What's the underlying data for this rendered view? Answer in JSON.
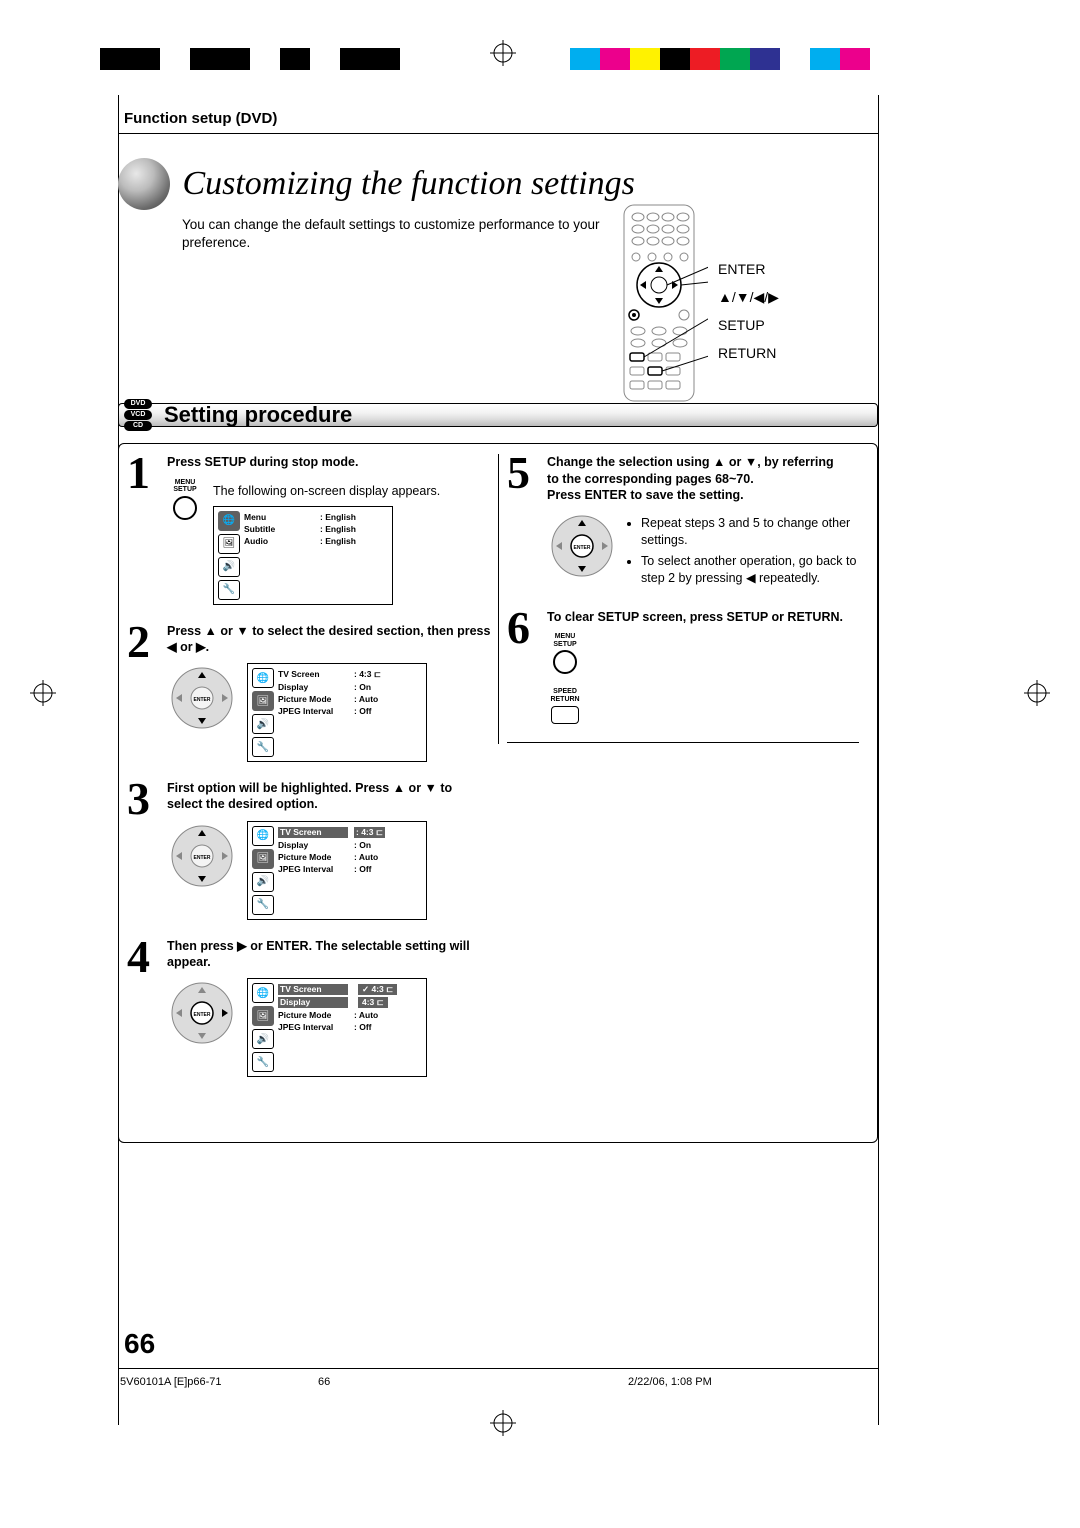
{
  "colorbars": {
    "black_swatches": [
      "#000000",
      "#000000",
      "#ffffff",
      "#000000",
      "#000000",
      "#ffffff",
      "#000000",
      "#ffffff",
      "#000000",
      "#000000"
    ],
    "cmyk_swatches": [
      "#00aeef",
      "#ec008c",
      "#fff200",
      "#000000",
      "#ed1c24",
      "#00a651",
      "#2e3192",
      "#ffffff",
      "#00aeef",
      "#ec008c"
    ]
  },
  "header": {
    "section": "Function setup (DVD)",
    "title": "Customizing the function settings",
    "intro": "You can change the default settings to customize performance to your preference."
  },
  "remote_labels": {
    "enter": "ENTER",
    "arrows": "▲/▼/◀/▶",
    "setup": "SETUP",
    "return": "RETURN"
  },
  "procedure": {
    "disc_badges": [
      "DVD",
      "VCD",
      "CD"
    ],
    "title": "Setting procedure"
  },
  "steps": {
    "s1": {
      "num": "1",
      "head": "Press SETUP during stop mode.",
      "body": "The following on-screen display appears.",
      "key_label1": "MENU",
      "key_label2": "SETUP"
    },
    "s2": {
      "num": "2",
      "head": "Press ▲ or ▼ to select the desired section, then press ◀ or ▶."
    },
    "s3": {
      "num": "3",
      "head": "First option will be highlighted. Press ▲ or ▼ to select the desired option."
    },
    "s4": {
      "num": "4",
      "head": "Then press ▶ or ENTER. The selectable setting will appear."
    },
    "s5": {
      "num": "5",
      "head_l1": "Change the selection using ▲ or ▼, by referring",
      "head_l2": "to the corresponding pages 68~70.",
      "head_l3": "Press ENTER to save the setting.",
      "bullet1": "Repeat steps 3 and 5 to change other settings.",
      "bullet2": "To select another operation, go back to step 2 by pressing ◀ repeatedly."
    },
    "s6": {
      "num": "6",
      "head": "To clear SETUP screen, press SETUP or RETURN.",
      "key1_l1": "MENU",
      "key1_l2": "SETUP",
      "key2_l1": "SPEED",
      "key2_l2": "RETURN"
    }
  },
  "osd1": {
    "rows": [
      {
        "lbl": "Menu",
        "val": "English"
      },
      {
        "lbl": "Subtitle",
        "val": "English"
      },
      {
        "lbl": "Audio",
        "val": "English"
      }
    ]
  },
  "osd2": {
    "rows": [
      {
        "lbl": "TV Screen",
        "val": "4:3 ⊏"
      },
      {
        "lbl": "Display",
        "val": "On"
      },
      {
        "lbl": "Picture Mode",
        "val": "Auto"
      },
      {
        "lbl": "JPEG Interval",
        "val": "Off"
      }
    ]
  },
  "osd3": {
    "rows": [
      {
        "lbl": "TV Screen",
        "val": "4:3 ⊏",
        "hl": true
      },
      {
        "lbl": "Display",
        "val": "On"
      },
      {
        "lbl": "Picture Mode",
        "val": "Auto"
      },
      {
        "lbl": "JPEG Interval",
        "val": "Off"
      }
    ]
  },
  "osd4": {
    "rows": [
      {
        "lbl": "TV Screen",
        "val": "4:3 ⊏",
        "popup": true,
        "check": true
      },
      {
        "lbl": "Display",
        "val": "4:3 ⊏",
        "popup": true
      },
      {
        "lbl": "Picture Mode",
        "val": "Auto"
      },
      {
        "lbl": "JPEG Interval",
        "val": "Off"
      }
    ]
  },
  "osd_icons": [
    "🌐",
    "🖼",
    "🔊",
    "🔧"
  ],
  "footer": {
    "page": "66",
    "doc_id": "5V60101A [E]p66-71",
    "page_small": "66",
    "timestamp": "2/22/06, 1:08 PM"
  }
}
